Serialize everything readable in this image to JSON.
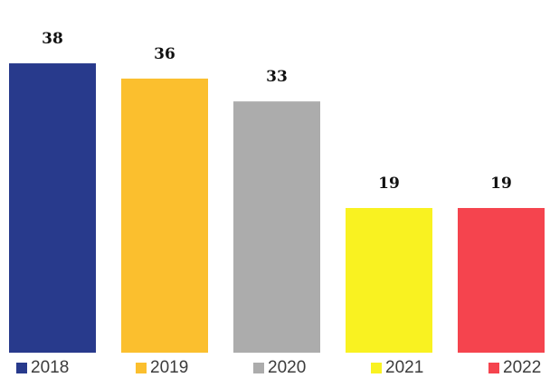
{
  "chart_data": {
    "type": "bar",
    "categories": [
      "2018",
      "2019",
      "2020",
      "2021",
      "2022"
    ],
    "values": [
      38,
      36,
      33,
      19,
      19
    ],
    "colors": [
      "#283a8c",
      "#fbbf2e",
      "#acacac",
      "#f9f221",
      "#f5444e"
    ],
    "title": "",
    "xlabel": "",
    "ylabel": "",
    "data_labels": true,
    "legend_position": "bottom",
    "grid": false
  }
}
